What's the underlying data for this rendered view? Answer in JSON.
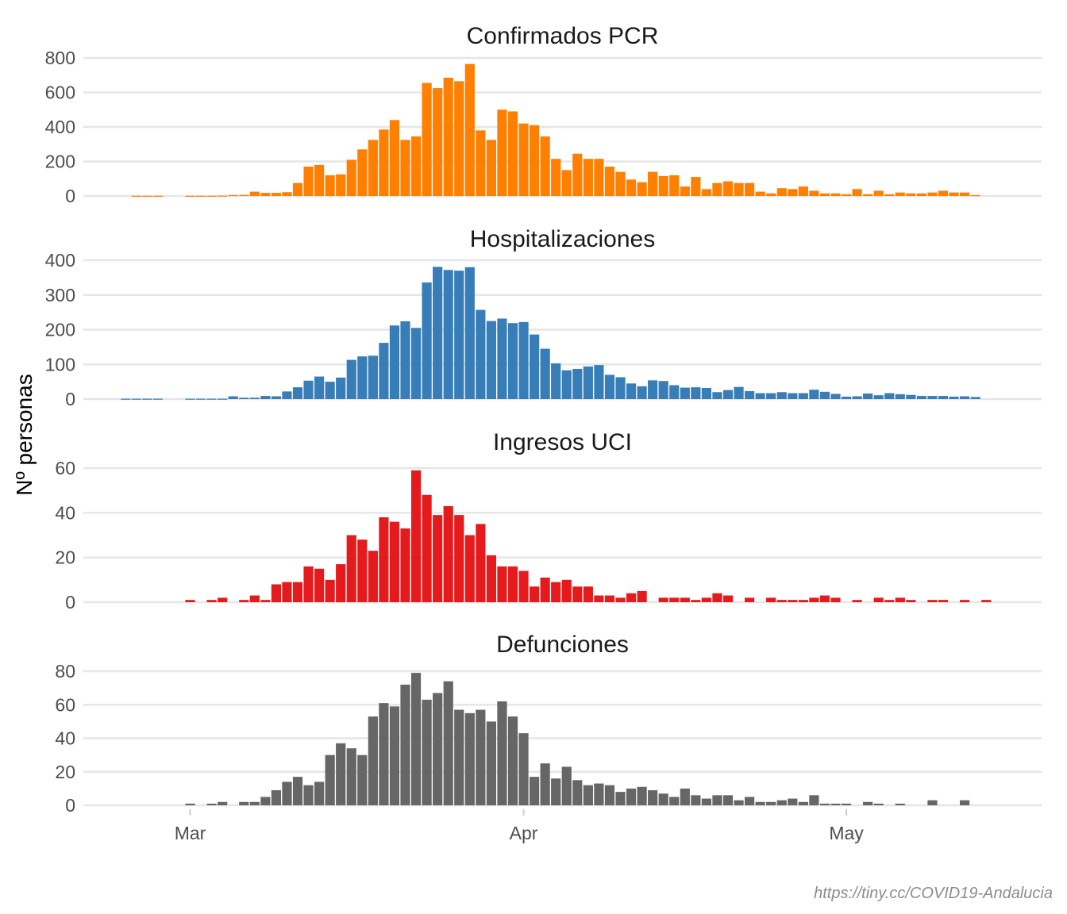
{
  "figure": {
    "ylabel": "Nº personas",
    "caption": "https://tiny.cc/COVID19-Andalucia"
  },
  "chart_data": [
    {
      "type": "bar",
      "title": "Confirmados PCR",
      "color": "#FF7F00",
      "x_start": "2020-02-25",
      "yticks": [
        0,
        200,
        400,
        600,
        800
      ],
      "ylim": [
        0,
        800
      ],
      "grid": true,
      "values": [
        1,
        1,
        1,
        0,
        0,
        1,
        1,
        1,
        2,
        5,
        6,
        25,
        18,
        18,
        22,
        75,
        170,
        180,
        120,
        125,
        210,
        270,
        325,
        385,
        440,
        325,
        345,
        655,
        625,
        685,
        665,
        765,
        380,
        325,
        500,
        490,
        420,
        410,
        345,
        215,
        150,
        245,
        215,
        215,
        170,
        140,
        95,
        80,
        140,
        115,
        120,
        55,
        110,
        40,
        75,
        85,
        75,
        75,
        25,
        15,
        45,
        40,
        55,
        30,
        15,
        15,
        10,
        40,
        10,
        30,
        10,
        20,
        15,
        15,
        20,
        30,
        20,
        20,
        5
      ],
      "x_ticks": [
        {
          "date": "2020-03-01",
          "label": "Mar"
        },
        {
          "date": "2020-04-01",
          "label": "Apr"
        },
        {
          "date": "2020-05-01",
          "label": "May"
        }
      ]
    },
    {
      "type": "bar",
      "title": "Hospitalizaciones",
      "color": "#377EB8",
      "x_start": "2020-02-24",
      "yticks": [
        0,
        100,
        200,
        300,
        400
      ],
      "ylim": [
        0,
        400
      ],
      "grid": true,
      "values": [
        1,
        1,
        1,
        1,
        0,
        0,
        1,
        1,
        1,
        1,
        8,
        4,
        4,
        9,
        8,
        22,
        34,
        53,
        65,
        50,
        62,
        113,
        123,
        125,
        162,
        212,
        224,
        205,
        336,
        381,
        372,
        370,
        380,
        257,
        225,
        232,
        219,
        222,
        186,
        145,
        103,
        83,
        87,
        94,
        98,
        70,
        63,
        45,
        37,
        54,
        52,
        40,
        33,
        34,
        32,
        20,
        26,
        35,
        23,
        17,
        17,
        20,
        17,
        17,
        27,
        21,
        15,
        7,
        8,
        16,
        11,
        17,
        14,
        12,
        9,
        9,
        9,
        7,
        8,
        6
      ],
      "x_ticks": [
        {
          "date": "2020-03-01",
          "label": "Mar"
        },
        {
          "date": "2020-04-01",
          "label": "Apr"
        },
        {
          "date": "2020-05-01",
          "label": "May"
        }
      ]
    },
    {
      "type": "bar",
      "title": "Ingresos UCI",
      "color": "#E41A1C",
      "x_start": "2020-02-24",
      "yticks": [
        0,
        20,
        40,
        60
      ],
      "ylim": [
        0,
        60
      ],
      "grid": true,
      "values": [
        0,
        0,
        0,
        0,
        0,
        0,
        1,
        0,
        1,
        2,
        0,
        1,
        3,
        1,
        8,
        9,
        9,
        16,
        15,
        10,
        17,
        30,
        28,
        23,
        38,
        36,
        33,
        59,
        48,
        39,
        43,
        39,
        30,
        35,
        21,
        16,
        16,
        14,
        7,
        11,
        9,
        10,
        7,
        7,
        3,
        3,
        2,
        4,
        5,
        0,
        2,
        2,
        2,
        1,
        2,
        4,
        3,
        0,
        2,
        0,
        2,
        1,
        1,
        1,
        2,
        3,
        2,
        0,
        1,
        0,
        2,
        1,
        2,
        1,
        0,
        1,
        1,
        0,
        1,
        0,
        1
      ],
      "x_ticks": [
        {
          "date": "2020-03-01",
          "label": "Mar"
        },
        {
          "date": "2020-04-01",
          "label": "Apr"
        },
        {
          "date": "2020-05-01",
          "label": "May"
        }
      ]
    },
    {
      "type": "bar",
      "title": "Defunciones",
      "color": "#666666",
      "x_start": "2020-02-24",
      "yticks": [
        0,
        20,
        40,
        60,
        80
      ],
      "ylim": [
        0,
        80
      ],
      "grid": true,
      "values": [
        0,
        0,
        0,
        0,
        0,
        0,
        1,
        0,
        1,
        2,
        0,
        2,
        2,
        5,
        9,
        14,
        17,
        12,
        14,
        30,
        37,
        34,
        30,
        53,
        61,
        59,
        72,
        79,
        63,
        67,
        74,
        57,
        55,
        57,
        50,
        62,
        53,
        43,
        17,
        25,
        16,
        23,
        15,
        12,
        13,
        12,
        8,
        10,
        11,
        9,
        7,
        5,
        10,
        6,
        4,
        6,
        6,
        3,
        5,
        2,
        2,
        3,
        4,
        2,
        6,
        1,
        1,
        1,
        0,
        2,
        1,
        0,
        1,
        0,
        0,
        3,
        0,
        0,
        3,
        0
      ],
      "x_ticks": [
        {
          "date": "2020-03-01",
          "label": "Mar"
        },
        {
          "date": "2020-04-01",
          "label": "Apr"
        },
        {
          "date": "2020-05-01",
          "label": "May"
        }
      ]
    }
  ]
}
